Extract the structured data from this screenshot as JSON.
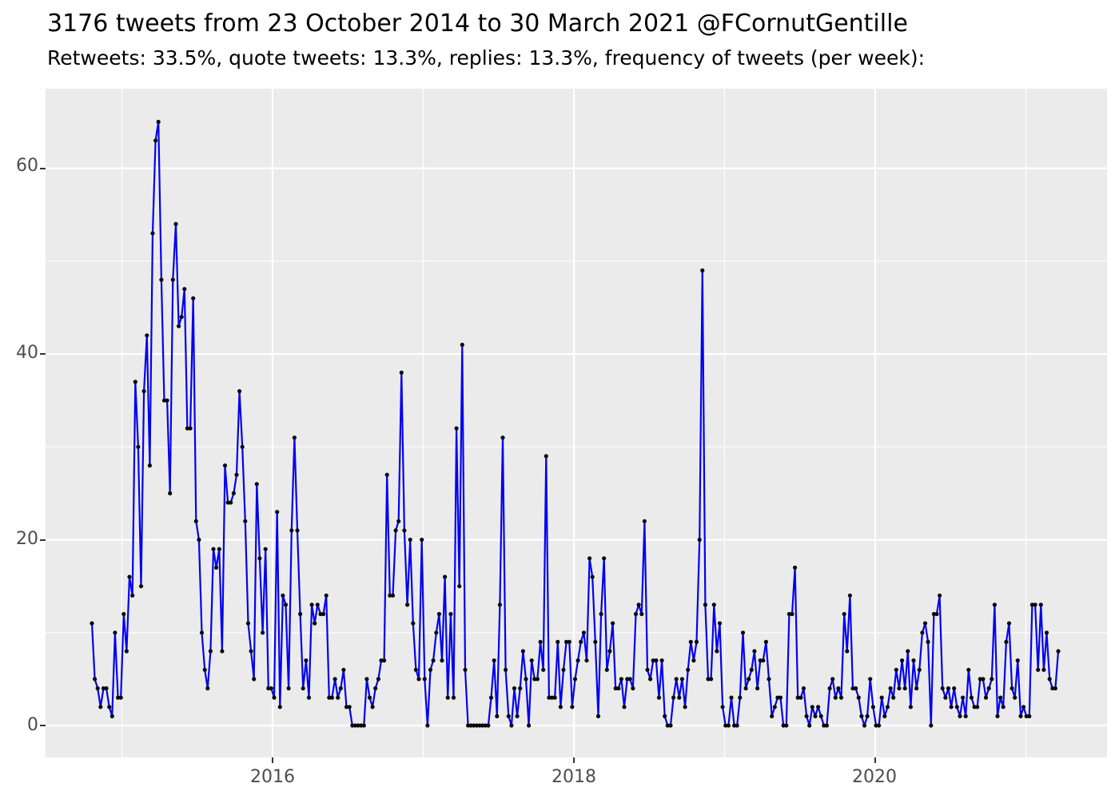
{
  "header": {
    "title": "3176 tweets from 23 October 2014 to 30 March 2021 @FCornutGentille",
    "subtitle": "Retweets: 33.5%, quote tweets: 13.3%, replies: 13.3%, frequency of tweets (per week):"
  },
  "chart_data": {
    "type": "line",
    "series_name": "tweets per week",
    "title": "3176 tweets from 23 October 2014 to 30 March 2021 @FCornutGentille",
    "subtitle": "Retweets: 33.5%, quote tweets: 13.3%, replies: 13.3%, frequency of tweets (per week):",
    "x_start_year": 2014.801,
    "x_end_year": 2021.215,
    "x_step_years": 0.019208,
    "ylim": [
      0,
      68.4
    ],
    "grid": true,
    "legend": "none",
    "y_ticks": [
      {
        "value": 0,
        "label": "0"
      },
      {
        "value": 20,
        "label": "20"
      },
      {
        "value": 40,
        "label": "40"
      },
      {
        "value": 60,
        "label": "60"
      }
    ],
    "x_ticks": [
      {
        "value": 2016,
        "label": "2016"
      },
      {
        "value": 2018,
        "label": "2018"
      },
      {
        "value": 2020,
        "label": "2020"
      }
    ],
    "y_minor": [
      10,
      30,
      50
    ],
    "x_minor": [
      2015,
      2017,
      2019,
      2021
    ],
    "colors": {
      "panel_background": "#EBEBEB",
      "gridline": "#FFFFFF",
      "line": "#0202F0",
      "point": "#0a0a0a",
      "axis_text": "#4d4d4d",
      "tick_mark": "#333333",
      "title_text": "#000000"
    },
    "values": [
      11,
      5,
      4,
      2,
      4,
      4,
      2,
      1,
      10,
      3,
      3,
      12,
      8,
      16,
      14,
      37,
      30,
      15,
      36,
      42,
      28,
      53,
      63,
      65,
      48,
      35,
      35,
      25,
      48,
      54,
      43,
      44,
      47,
      32,
      32,
      46,
      22,
      20,
      10,
      6,
      4,
      8,
      19,
      17,
      19,
      8,
      28,
      24,
      24,
      25,
      27,
      36,
      30,
      22,
      11,
      8,
      5,
      26,
      18,
      10,
      19,
      4,
      4,
      3,
      23,
      2,
      14,
      13,
      4,
      21,
      31,
      21,
      12,
      4,
      7,
      3,
      13,
      11,
      13,
      12,
      12,
      14,
      3,
      3,
      5,
      3,
      4,
      6,
      2,
      2,
      0,
      0,
      0,
      0,
      0,
      5,
      3,
      2,
      4,
      5,
      7,
      7,
      27,
      14,
      14,
      21,
      22,
      38,
      21,
      13,
      20,
      11,
      6,
      5,
      20,
      5,
      0,
      6,
      7,
      10,
      12,
      7,
      16,
      3,
      12,
      3,
      32,
      15,
      41,
      6,
      0,
      0,
      0,
      0,
      0,
      0,
      0,
      0,
      3,
      7,
      1,
      13,
      31,
      6,
      1,
      0,
      4,
      1,
      4,
      8,
      5,
      0,
      7,
      5,
      5,
      9,
      6,
      29,
      3,
      3,
      3,
      9,
      2,
      6,
      9,
      9,
      2,
      5,
      7,
      9,
      10,
      7,
      18,
      16,
      9,
      1,
      12,
      18,
      6,
      8,
      11,
      4,
      4,
      5,
      2,
      5,
      5,
      4,
      12,
      13,
      12,
      22,
      6,
      5,
      7,
      7,
      3,
      7,
      1,
      0,
      0,
      3,
      5,
      3,
      5,
      2,
      6,
      9,
      7,
      9,
      20,
      49,
      13,
      5,
      5,
      13,
      8,
      11,
      2,
      0,
      0,
      3,
      0,
      0,
      3,
      10,
      4,
      5,
      6,
      8,
      4,
      7,
      7,
      9,
      5,
      1,
      2,
      3,
      3,
      0,
      0,
      12,
      12,
      17,
      3,
      3,
      4,
      1,
      0,
      2,
      1,
      2,
      1,
      0,
      0,
      4,
      5,
      3,
      4,
      3,
      12,
      8,
      14,
      4,
      4,
      3,
      1,
      0,
      1,
      5,
      2,
      0,
      0,
      3,
      1,
      2,
      4,
      3,
      6,
      4,
      7,
      4,
      8,
      2,
      7,
      4,
      6,
      10,
      11,
      9,
      0,
      12,
      12,
      14,
      4,
      3,
      4,
      2,
      4,
      2,
      1,
      3,
      1,
      6,
      3,
      2,
      2,
      5,
      5,
      3,
      4,
      5,
      13,
      1,
      3,
      2,
      9,
      11,
      4,
      3,
      7,
      1,
      2,
      1,
      1,
      13,
      13,
      6,
      13,
      6,
      10,
      5,
      4,
      4,
      8
    ]
  }
}
